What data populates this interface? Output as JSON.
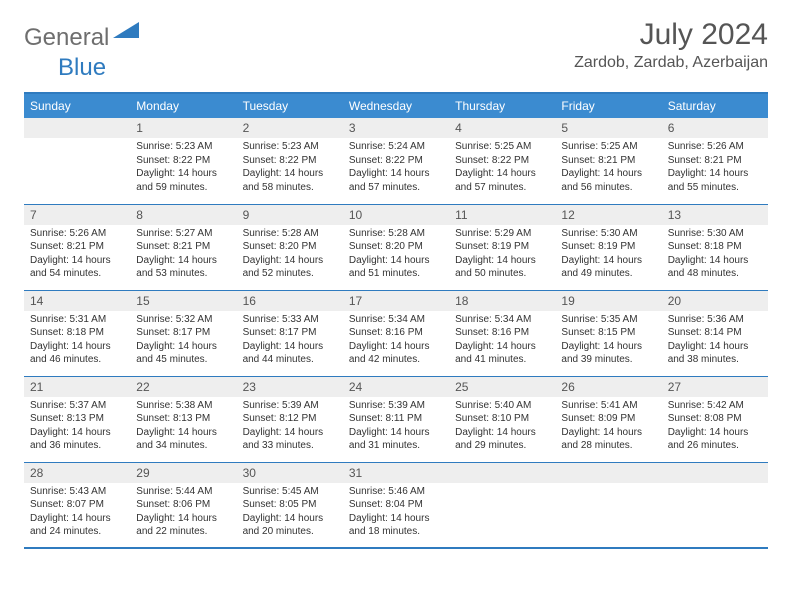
{
  "logo": {
    "part1": "General",
    "part2": "Blue"
  },
  "title": "July 2024",
  "location": "Zardob, Zardab, Azerbaijan",
  "colors": {
    "header_bg": "#3b8bd0",
    "header_text": "#ffffff",
    "border": "#2f7bbf",
    "daynum_bg": "#eeeeee",
    "text": "#333333",
    "title_text": "#555555"
  },
  "weekdays": [
    "Sunday",
    "Monday",
    "Tuesday",
    "Wednesday",
    "Thursday",
    "Friday",
    "Saturday"
  ],
  "weeks": [
    [
      null,
      {
        "d": "1",
        "sr": "5:23 AM",
        "ss": "8:22 PM",
        "dl": "14 hours and 59 minutes."
      },
      {
        "d": "2",
        "sr": "5:23 AM",
        "ss": "8:22 PM",
        "dl": "14 hours and 58 minutes."
      },
      {
        "d": "3",
        "sr": "5:24 AM",
        "ss": "8:22 PM",
        "dl": "14 hours and 57 minutes."
      },
      {
        "d": "4",
        "sr": "5:25 AM",
        "ss": "8:22 PM",
        "dl": "14 hours and 57 minutes."
      },
      {
        "d": "5",
        "sr": "5:25 AM",
        "ss": "8:21 PM",
        "dl": "14 hours and 56 minutes."
      },
      {
        "d": "6",
        "sr": "5:26 AM",
        "ss": "8:21 PM",
        "dl": "14 hours and 55 minutes."
      }
    ],
    [
      {
        "d": "7",
        "sr": "5:26 AM",
        "ss": "8:21 PM",
        "dl": "14 hours and 54 minutes."
      },
      {
        "d": "8",
        "sr": "5:27 AM",
        "ss": "8:21 PM",
        "dl": "14 hours and 53 minutes."
      },
      {
        "d": "9",
        "sr": "5:28 AM",
        "ss": "8:20 PM",
        "dl": "14 hours and 52 minutes."
      },
      {
        "d": "10",
        "sr": "5:28 AM",
        "ss": "8:20 PM",
        "dl": "14 hours and 51 minutes."
      },
      {
        "d": "11",
        "sr": "5:29 AM",
        "ss": "8:19 PM",
        "dl": "14 hours and 50 minutes."
      },
      {
        "d": "12",
        "sr": "5:30 AM",
        "ss": "8:19 PM",
        "dl": "14 hours and 49 minutes."
      },
      {
        "d": "13",
        "sr": "5:30 AM",
        "ss": "8:18 PM",
        "dl": "14 hours and 48 minutes."
      }
    ],
    [
      {
        "d": "14",
        "sr": "5:31 AM",
        "ss": "8:18 PM",
        "dl": "14 hours and 46 minutes."
      },
      {
        "d": "15",
        "sr": "5:32 AM",
        "ss": "8:17 PM",
        "dl": "14 hours and 45 minutes."
      },
      {
        "d": "16",
        "sr": "5:33 AM",
        "ss": "8:17 PM",
        "dl": "14 hours and 44 minutes."
      },
      {
        "d": "17",
        "sr": "5:34 AM",
        "ss": "8:16 PM",
        "dl": "14 hours and 42 minutes."
      },
      {
        "d": "18",
        "sr": "5:34 AM",
        "ss": "8:16 PM",
        "dl": "14 hours and 41 minutes."
      },
      {
        "d": "19",
        "sr": "5:35 AM",
        "ss": "8:15 PM",
        "dl": "14 hours and 39 minutes."
      },
      {
        "d": "20",
        "sr": "5:36 AM",
        "ss": "8:14 PM",
        "dl": "14 hours and 38 minutes."
      }
    ],
    [
      {
        "d": "21",
        "sr": "5:37 AM",
        "ss": "8:13 PM",
        "dl": "14 hours and 36 minutes."
      },
      {
        "d": "22",
        "sr": "5:38 AM",
        "ss": "8:13 PM",
        "dl": "14 hours and 34 minutes."
      },
      {
        "d": "23",
        "sr": "5:39 AM",
        "ss": "8:12 PM",
        "dl": "14 hours and 33 minutes."
      },
      {
        "d": "24",
        "sr": "5:39 AM",
        "ss": "8:11 PM",
        "dl": "14 hours and 31 minutes."
      },
      {
        "d": "25",
        "sr": "5:40 AM",
        "ss": "8:10 PM",
        "dl": "14 hours and 29 minutes."
      },
      {
        "d": "26",
        "sr": "5:41 AM",
        "ss": "8:09 PM",
        "dl": "14 hours and 28 minutes."
      },
      {
        "d": "27",
        "sr": "5:42 AM",
        "ss": "8:08 PM",
        "dl": "14 hours and 26 minutes."
      }
    ],
    [
      {
        "d": "28",
        "sr": "5:43 AM",
        "ss": "8:07 PM",
        "dl": "14 hours and 24 minutes."
      },
      {
        "d": "29",
        "sr": "5:44 AM",
        "ss": "8:06 PM",
        "dl": "14 hours and 22 minutes."
      },
      {
        "d": "30",
        "sr": "5:45 AM",
        "ss": "8:05 PM",
        "dl": "14 hours and 20 minutes."
      },
      {
        "d": "31",
        "sr": "5:46 AM",
        "ss": "8:04 PM",
        "dl": "14 hours and 18 minutes."
      },
      null,
      null,
      null
    ]
  ],
  "labels": {
    "sunrise": "Sunrise: ",
    "sunset": "Sunset: ",
    "daylight": "Daylight: "
  }
}
